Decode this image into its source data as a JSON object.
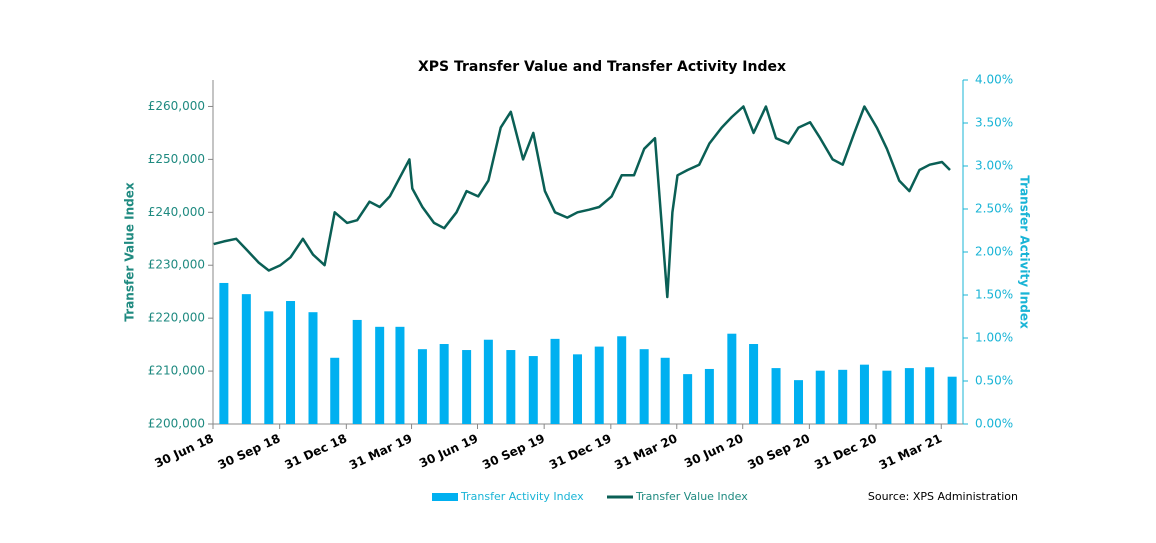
{
  "chart_data": {
    "type": "combo",
    "title": "XPS Transfer Value and Transfer Activity Index",
    "ylabel": "Transfer Value Index",
    "y2label": "Transfer Activity Index",
    "source": "Source: XPS Administration",
    "xlim": [
      "2018-06-30",
      "2021-04-30"
    ],
    "xticks": [
      {
        "value": "2018-06-30",
        "label": "30 Jun 18"
      },
      {
        "value": "2018-09-30",
        "label": "30 Sep 18"
      },
      {
        "value": "2018-12-31",
        "label": "31 Dec 18"
      },
      {
        "value": "2019-03-31",
        "label": "31 Mar 19"
      },
      {
        "value": "2019-06-30",
        "label": "30 Jun 19"
      },
      {
        "value": "2019-09-30",
        "label": "30 Sep 19"
      },
      {
        "value": "2019-12-31",
        "label": "31 Dec 19"
      },
      {
        "value": "2020-03-31",
        "label": "31 Mar 20"
      },
      {
        "value": "2020-06-30",
        "label": "30 Jun 20"
      },
      {
        "value": "2020-09-30",
        "label": "30 Sep 20"
      },
      {
        "value": "2020-12-31",
        "label": "31 Dec 20"
      },
      {
        "value": "2021-03-31",
        "label": "31 Mar 21"
      }
    ],
    "ylim": [
      200000,
      265000
    ],
    "yticks": [
      {
        "value": 200000,
        "label": "£200,000"
      },
      {
        "value": 210000,
        "label": "£210,000"
      },
      {
        "value": 220000,
        "label": "£220,000"
      },
      {
        "value": 230000,
        "label": "£230,000"
      },
      {
        "value": 240000,
        "label": "£240,000"
      },
      {
        "value": 250000,
        "label": "£250,000"
      },
      {
        "value": 260000,
        "label": "£260,000"
      }
    ],
    "y2lim": [
      0,
      4
    ],
    "y2ticks": [
      {
        "value": 0,
        "label": "0.00%"
      },
      {
        "value": 0.5,
        "label": "0.50%"
      },
      {
        "value": 1,
        "label": "1.00%"
      },
      {
        "value": 1.5,
        "label": "1.50%"
      },
      {
        "value": 2,
        "label": "2.00%"
      },
      {
        "value": 2.5,
        "label": "2.50%"
      },
      {
        "value": 3,
        "label": "3.00%"
      },
      {
        "value": 3.5,
        "label": "3.50%"
      },
      {
        "value": 4,
        "label": "4.00%"
      }
    ],
    "series": [
      {
        "name": "Transfer Activity Index",
        "type": "bar",
        "axis": "y2",
        "color": "#00b0f0",
        "x": [
          "2018-07-15",
          "2018-08-15",
          "2018-09-15",
          "2018-10-15",
          "2018-11-15",
          "2018-12-15",
          "2019-01-15",
          "2019-02-15",
          "2019-03-15",
          "2019-04-15",
          "2019-05-15",
          "2019-06-15",
          "2019-07-15",
          "2019-08-15",
          "2019-09-15",
          "2019-10-15",
          "2019-11-15",
          "2019-12-15",
          "2020-01-15",
          "2020-02-15",
          "2020-03-15",
          "2020-04-15",
          "2020-05-15",
          "2020-06-15",
          "2020-07-15",
          "2020-08-15",
          "2020-09-15",
          "2020-10-15",
          "2020-11-15",
          "2020-12-15",
          "2021-01-15",
          "2021-02-15",
          "2021-03-15",
          "2021-04-15"
        ],
        "values": [
          1.64,
          1.51,
          1.31,
          1.43,
          1.3,
          0.77,
          1.21,
          1.13,
          1.13,
          0.87,
          0.93,
          0.86,
          0.98,
          0.86,
          0.79,
          0.99,
          0.81,
          0.9,
          1.02,
          0.87,
          0.77,
          0.58,
          0.64,
          1.05,
          0.93,
          0.65,
          0.51,
          0.62,
          0.63,
          0.69,
          0.62,
          0.65,
          0.66,
          0.55
        ]
      },
      {
        "name": "Transfer Value Index",
        "type": "line",
        "axis": "y",
        "color": "#0a5f55",
        "x": [
          "2018-07-01",
          "2018-07-15",
          "2018-08-01",
          "2018-08-15",
          "2018-09-01",
          "2018-09-15",
          "2018-10-01",
          "2018-10-15",
          "2018-11-01",
          "2018-11-15",
          "2018-12-01",
          "2018-12-15",
          "2019-01-01",
          "2019-01-15",
          "2019-02-01",
          "2019-02-15",
          "2019-03-01",
          "2019-03-28",
          "2019-04-01",
          "2019-04-15",
          "2019-05-01",
          "2019-05-15",
          "2019-06-01",
          "2019-06-15",
          "2019-07-01",
          "2019-07-15",
          "2019-08-01",
          "2019-08-15",
          "2019-09-01",
          "2019-09-15",
          "2019-10-01",
          "2019-10-15",
          "2019-11-01",
          "2019-11-15",
          "2019-12-01",
          "2019-12-15",
          "2020-01-01",
          "2020-01-15",
          "2020-02-01",
          "2020-02-15",
          "2020-03-01",
          "2020-03-18",
          "2020-03-25",
          "2020-04-01",
          "2020-04-15",
          "2020-05-01",
          "2020-05-15",
          "2020-06-01",
          "2020-06-15",
          "2020-07-01",
          "2020-07-15",
          "2020-08-01",
          "2020-08-15",
          "2020-09-01",
          "2020-09-15",
          "2020-10-01",
          "2020-10-15",
          "2020-11-01",
          "2020-11-15",
          "2020-12-01",
          "2020-12-15",
          "2021-01-01",
          "2021-01-15",
          "2021-02-01",
          "2021-02-15",
          "2021-03-01",
          "2021-03-15",
          "2021-04-01",
          "2021-04-12"
        ],
        "values": [
          234000,
          234500,
          235000,
          233000,
          230500,
          229000,
          230000,
          231500,
          235000,
          232000,
          230000,
          240000,
          238000,
          238500,
          242000,
          241000,
          243000,
          250000,
          244500,
          241000,
          238000,
          237000,
          240000,
          244000,
          243000,
          246000,
          256000,
          259000,
          250000,
          255000,
          244000,
          240000,
          239000,
          240000,
          240500,
          241000,
          243000,
          247000,
          247000,
          252000,
          254000,
          224000,
          240000,
          247000,
          248000,
          249000,
          253000,
          256000,
          258000,
          260000,
          255000,
          260000,
          254000,
          253000,
          256000,
          257000,
          254000,
          250000,
          249000,
          255000,
          260000,
          256000,
          252000,
          246000,
          244000,
          248000,
          249000,
          249500,
          248000
        ]
      }
    ]
  }
}
